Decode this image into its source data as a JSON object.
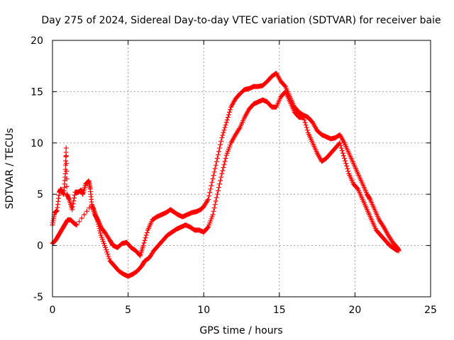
{
  "chart_data": {
    "type": "scatter",
    "title": "Day 275 of 2024, Sidereal Day-to-day VTEC variation (SDTVAR) for receiver baie",
    "xlabel": "GPS time / hours",
    "ylabel": "SDTVAR / TECUs",
    "xlim": [
      0,
      25
    ],
    "ylim": [
      -5,
      20
    ],
    "xticks": [
      0,
      5,
      10,
      15,
      20,
      25
    ],
    "yticks": [
      -5,
      0,
      5,
      10,
      15,
      20
    ],
    "grid": true,
    "marker": "+",
    "color": "#ff0000",
    "series": [
      {
        "name": "trace-upper",
        "x": [
          0.0,
          0.15,
          0.3,
          0.45,
          0.55,
          0.65,
          0.75,
          0.85,
          0.9,
          0.95,
          1.1,
          1.3,
          1.5,
          1.7,
          1.9,
          2.0,
          2.2,
          2.4,
          2.5,
          2.6,
          2.8,
          3.0,
          3.2,
          3.5,
          3.8,
          4.0,
          4.3,
          4.6,
          4.9,
          5.2,
          5.5,
          5.8,
          6.0,
          6.3,
          6.6,
          6.9,
          7.2,
          7.5,
          7.8,
          8.0,
          8.3,
          8.6,
          8.9,
          9.2,
          9.5,
          9.8,
          10.0,
          10.3,
          10.6,
          10.9,
          11.2,
          11.5,
          11.8,
          12.1,
          12.4,
          12.7,
          13.0,
          13.3,
          13.6,
          13.9,
          14.2,
          14.5,
          14.8,
          15.1,
          15.4,
          15.7,
          16.0,
          16.3,
          16.6,
          16.9,
          17.2,
          17.5,
          17.8,
          18.1,
          18.4,
          18.7,
          19.0,
          19.3,
          19.6,
          19.9,
          20.2,
          20.5,
          20.8,
          21.0,
          21.3,
          21.6,
          21.9,
          22.2,
          22.5,
          22.8,
          22.9
        ],
        "y": [
          2.0,
          3.2,
          3.4,
          5.2,
          5.5,
          5.2,
          5.0,
          7.0,
          9.5,
          5.0,
          4.5,
          3.5,
          5.2,
          5.2,
          5.4,
          5.0,
          6.0,
          6.3,
          5.5,
          4.0,
          3.0,
          2.5,
          1.8,
          1.2,
          0.5,
          0.0,
          -0.2,
          0.2,
          0.3,
          -0.2,
          -0.5,
          -1.0,
          0.0,
          1.5,
          2.5,
          2.8,
          3.0,
          3.2,
          3.5,
          3.3,
          3.0,
          2.8,
          3.0,
          3.2,
          3.3,
          3.5,
          3.8,
          4.5,
          6.5,
          8.5,
          10.5,
          12.0,
          13.5,
          14.3,
          14.8,
          15.2,
          15.3,
          15.5,
          15.5,
          15.6,
          16.0,
          16.5,
          16.8,
          16.0,
          15.5,
          14.5,
          13.5,
          13.0,
          12.7,
          12.5,
          12.0,
          11.2,
          10.8,
          10.6,
          10.4,
          10.5,
          10.8,
          10.0,
          9.0,
          8.0,
          7.0,
          6.0,
          5.0,
          4.5,
          3.5,
          2.5,
          1.8,
          1.0,
          0.3,
          -0.2,
          -0.5
        ]
      },
      {
        "name": "trace-lower",
        "x": [
          0.0,
          0.2,
          0.4,
          0.6,
          0.8,
          1.0,
          1.2,
          1.4,
          1.6,
          2.6,
          2.8,
          3.0,
          3.2,
          3.5,
          3.8,
          4.1,
          4.4,
          4.7,
          5.0,
          5.3,
          5.6,
          5.9,
          6.1,
          6.4,
          6.7,
          7.0,
          7.3,
          7.6,
          7.9,
          8.2,
          8.5,
          8.8,
          9.1,
          9.4,
          9.7,
          10.0,
          10.3,
          10.6,
          10.9,
          11.2,
          11.5,
          11.8,
          12.1,
          12.4,
          12.7,
          13.0,
          13.3,
          13.6,
          13.9,
          14.2,
          14.5,
          14.8,
          15.1,
          15.4,
          15.7,
          16.0,
          16.3,
          16.6,
          16.9,
          17.2,
          17.5,
          17.8,
          18.1,
          18.4,
          18.7,
          19.0,
          19.3,
          19.6,
          19.9,
          20.2,
          20.5,
          20.8,
          21.1,
          21.4,
          21.7,
          22.0,
          22.3,
          22.6,
          22.8
        ],
        "y": [
          0.2,
          0.5,
          1.0,
          1.5,
          2.0,
          2.5,
          2.5,
          2.2,
          2.0,
          4.0,
          3.2,
          2.3,
          1.0,
          -0.2,
          -1.5,
          -2.0,
          -2.5,
          -2.8,
          -3.0,
          -2.8,
          -2.5,
          -2.0,
          -1.5,
          -1.2,
          -0.5,
          0.0,
          0.5,
          1.0,
          1.3,
          1.6,
          1.8,
          2.0,
          1.8,
          1.5,
          1.5,
          1.3,
          1.8,
          3.0,
          5.0,
          7.0,
          8.8,
          10.0,
          10.8,
          11.5,
          12.5,
          13.3,
          13.8,
          14.0,
          14.2,
          14.0,
          13.5,
          13.5,
          14.5,
          15.0,
          14.0,
          13.0,
          12.5,
          12.5,
          11.0,
          10.0,
          9.0,
          8.2,
          8.5,
          9.0,
          9.5,
          10.0,
          8.5,
          7.0,
          6.0,
          5.5,
          4.5,
          3.5,
          2.5,
          1.5,
          1.0,
          0.5,
          0.0,
          -0.3,
          -0.5
        ]
      }
    ]
  }
}
